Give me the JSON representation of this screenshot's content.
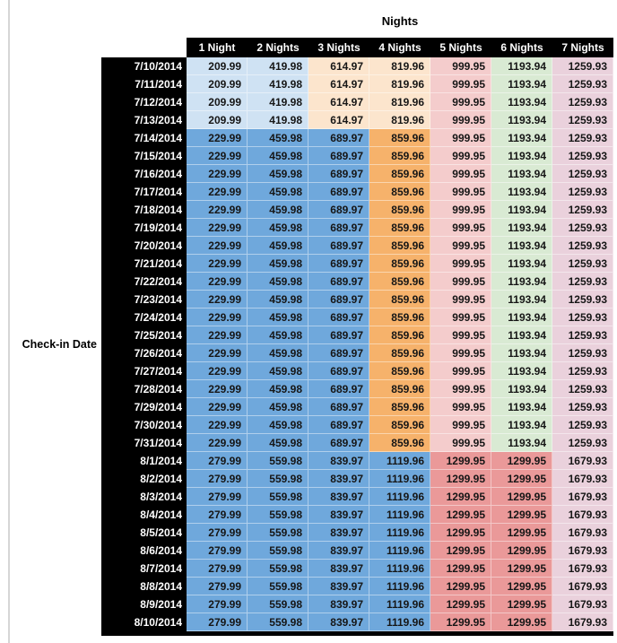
{
  "chart_data": {
    "type": "table",
    "title": "Nights",
    "row_axis_label": "Check-in Date",
    "columns": [
      "1 Night",
      "2 Nights",
      "3 Nights",
      "4 Nights",
      "5 Nights",
      "6 Nights",
      "7 Nights"
    ],
    "header_bg": "#000000",
    "header_fg": "#ffffff",
    "palette": {
      "light_blue": "#cfe2f3",
      "light_orange": "#fce5cd",
      "light_red": "#f4cccc",
      "light_green": "#d9ead3",
      "light_magenta": "#ead1dc",
      "blue": "#6fa8dc",
      "orange": "#f6b26b",
      "red": "#ea9999"
    },
    "row_styles": {
      "early": [
        "light_blue",
        "light_blue",
        "light_orange",
        "light_orange",
        "light_red",
        "light_green",
        "light_magenta"
      ],
      "mid": [
        "blue",
        "blue",
        "blue",
        "orange",
        "light_red",
        "light_green",
        "light_magenta"
      ],
      "late": [
        "blue",
        "blue",
        "blue",
        "blue",
        "red",
        "red",
        "light_magenta"
      ]
    },
    "rows": [
      {
        "date": "7/10/2014",
        "style": "early",
        "values": [
          209.99,
          419.98,
          614.97,
          819.96,
          999.95,
          1193.94,
          1259.93
        ]
      },
      {
        "date": "7/11/2014",
        "style": "early",
        "values": [
          209.99,
          419.98,
          614.97,
          819.96,
          999.95,
          1193.94,
          1259.93
        ]
      },
      {
        "date": "7/12/2014",
        "style": "early",
        "values": [
          209.99,
          419.98,
          614.97,
          819.96,
          999.95,
          1193.94,
          1259.93
        ]
      },
      {
        "date": "7/13/2014",
        "style": "early",
        "values": [
          209.99,
          419.98,
          614.97,
          819.96,
          999.95,
          1193.94,
          1259.93
        ]
      },
      {
        "date": "7/14/2014",
        "style": "mid",
        "values": [
          229.99,
          459.98,
          689.97,
          859.96,
          999.95,
          1193.94,
          1259.93
        ]
      },
      {
        "date": "7/15/2014",
        "style": "mid",
        "values": [
          229.99,
          459.98,
          689.97,
          859.96,
          999.95,
          1193.94,
          1259.93
        ]
      },
      {
        "date": "7/16/2014",
        "style": "mid",
        "values": [
          229.99,
          459.98,
          689.97,
          859.96,
          999.95,
          1193.94,
          1259.93
        ]
      },
      {
        "date": "7/17/2014",
        "style": "mid",
        "values": [
          229.99,
          459.98,
          689.97,
          859.96,
          999.95,
          1193.94,
          1259.93
        ]
      },
      {
        "date": "7/18/2014",
        "style": "mid",
        "values": [
          229.99,
          459.98,
          689.97,
          859.96,
          999.95,
          1193.94,
          1259.93
        ]
      },
      {
        "date": "7/19/2014",
        "style": "mid",
        "values": [
          229.99,
          459.98,
          689.97,
          859.96,
          999.95,
          1193.94,
          1259.93
        ]
      },
      {
        "date": "7/20/2014",
        "style": "mid",
        "values": [
          229.99,
          459.98,
          689.97,
          859.96,
          999.95,
          1193.94,
          1259.93
        ]
      },
      {
        "date": "7/21/2014",
        "style": "mid",
        "values": [
          229.99,
          459.98,
          689.97,
          859.96,
          999.95,
          1193.94,
          1259.93
        ]
      },
      {
        "date": "7/22/2014",
        "style": "mid",
        "values": [
          229.99,
          459.98,
          689.97,
          859.96,
          999.95,
          1193.94,
          1259.93
        ]
      },
      {
        "date": "7/23/2014",
        "style": "mid",
        "values": [
          229.99,
          459.98,
          689.97,
          859.96,
          999.95,
          1193.94,
          1259.93
        ]
      },
      {
        "date": "7/24/2014",
        "style": "mid",
        "values": [
          229.99,
          459.98,
          689.97,
          859.96,
          999.95,
          1193.94,
          1259.93
        ]
      },
      {
        "date": "7/25/2014",
        "style": "mid",
        "values": [
          229.99,
          459.98,
          689.97,
          859.96,
          999.95,
          1193.94,
          1259.93
        ]
      },
      {
        "date": "7/26/2014",
        "style": "mid",
        "values": [
          229.99,
          459.98,
          689.97,
          859.96,
          999.95,
          1193.94,
          1259.93
        ]
      },
      {
        "date": "7/27/2014",
        "style": "mid",
        "values": [
          229.99,
          459.98,
          689.97,
          859.96,
          999.95,
          1193.94,
          1259.93
        ]
      },
      {
        "date": "7/28/2014",
        "style": "mid",
        "values": [
          229.99,
          459.98,
          689.97,
          859.96,
          999.95,
          1193.94,
          1259.93
        ]
      },
      {
        "date": "7/29/2014",
        "style": "mid",
        "values": [
          229.99,
          459.98,
          689.97,
          859.96,
          999.95,
          1193.94,
          1259.93
        ]
      },
      {
        "date": "7/30/2014",
        "style": "mid",
        "values": [
          229.99,
          459.98,
          689.97,
          859.96,
          999.95,
          1193.94,
          1259.93
        ]
      },
      {
        "date": "7/31/2014",
        "style": "mid",
        "values": [
          229.99,
          459.98,
          689.97,
          859.96,
          999.95,
          1193.94,
          1259.93
        ]
      },
      {
        "date": "8/1/2014",
        "style": "late",
        "values": [
          279.99,
          559.98,
          839.97,
          1119.96,
          1299.95,
          1299.95,
          1679.93
        ]
      },
      {
        "date": "8/2/2014",
        "style": "late",
        "values": [
          279.99,
          559.98,
          839.97,
          1119.96,
          1299.95,
          1299.95,
          1679.93
        ]
      },
      {
        "date": "8/3/2014",
        "style": "late",
        "values": [
          279.99,
          559.98,
          839.97,
          1119.96,
          1299.95,
          1299.95,
          1679.93
        ]
      },
      {
        "date": "8/4/2014",
        "style": "late",
        "values": [
          279.99,
          559.98,
          839.97,
          1119.96,
          1299.95,
          1299.95,
          1679.93
        ]
      },
      {
        "date": "8/5/2014",
        "style": "late",
        "values": [
          279.99,
          559.98,
          839.97,
          1119.96,
          1299.95,
          1299.95,
          1679.93
        ]
      },
      {
        "date": "8/6/2014",
        "style": "late",
        "values": [
          279.99,
          559.98,
          839.97,
          1119.96,
          1299.95,
          1299.95,
          1679.93
        ]
      },
      {
        "date": "8/7/2014",
        "style": "late",
        "values": [
          279.99,
          559.98,
          839.97,
          1119.96,
          1299.95,
          1299.95,
          1679.93
        ]
      },
      {
        "date": "8/8/2014",
        "style": "late",
        "values": [
          279.99,
          559.98,
          839.97,
          1119.96,
          1299.95,
          1299.95,
          1679.93
        ]
      },
      {
        "date": "8/9/2014",
        "style": "late",
        "values": [
          279.99,
          559.98,
          839.97,
          1119.96,
          1299.95,
          1299.95,
          1679.93
        ]
      },
      {
        "date": "8/10/2014",
        "style": "late",
        "values": [
          279.99,
          559.98,
          839.97,
          1119.96,
          1299.95,
          1299.95,
          1679.93
        ]
      }
    ]
  }
}
